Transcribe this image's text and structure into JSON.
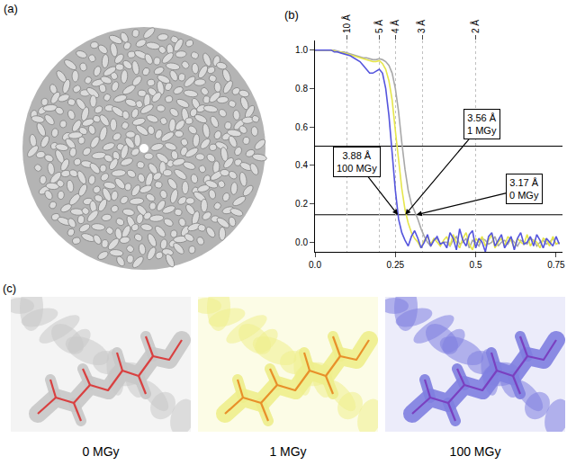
{
  "chart_data": {
    "type": "line",
    "panel_label": "(b)",
    "x": [
      0,
      0.01,
      0.02,
      0.03,
      0.04,
      0.05,
      0.06,
      0.07,
      0.08,
      0.09,
      0.1,
      0.11,
      0.12,
      0.13,
      0.14,
      0.15,
      0.16,
      0.17,
      0.18,
      0.19,
      0.2,
      0.21,
      0.22,
      0.23,
      0.24,
      0.25,
      0.26,
      0.27,
      0.28,
      0.29,
      0.3,
      0.31,
      0.32,
      0.33,
      0.34,
      0.35,
      0.36,
      0.37,
      0.38,
      0.39,
      0.4,
      0.41,
      0.42,
      0.43,
      0.44,
      0.45,
      0.46,
      0.47,
      0.48,
      0.49,
      0.5,
      0.51,
      0.52,
      0.53,
      0.54,
      0.55,
      0.56,
      0.57,
      0.58,
      0.59,
      0.6,
      0.61,
      0.62,
      0.63,
      0.64,
      0.65,
      0.66,
      0.67,
      0.68,
      0.69,
      0.7,
      0.71,
      0.72,
      0.73,
      0.74,
      0.75,
      0.76
    ],
    "series": [
      {
        "name": "0 MGy",
        "color": "#a8a8a8",
        "values": [
          1.0,
          1.0,
          1.0,
          1.0,
          1.0,
          1.0,
          1.0,
          0.995,
          0.99,
          0.99,
          0.985,
          0.98,
          0.975,
          0.97,
          0.965,
          0.96,
          0.96,
          0.955,
          0.95,
          0.95,
          0.955,
          0.95,
          0.94,
          0.92,
          0.88,
          0.8,
          0.68,
          0.52,
          0.38,
          0.27,
          0.2,
          0.16,
          0.12,
          0.07,
          0.03,
          0.0,
          -0.02,
          0.01,
          0.02,
          -0.01,
          0.0,
          0.0,
          -0.02,
          0.01,
          0.03,
          -0.01,
          0.0,
          0.02,
          -0.03,
          0.01,
          0.0,
          -0.02,
          0.02,
          0.01,
          -0.01,
          0.0,
          0.03,
          -0.02,
          0.0,
          0.01,
          -0.01,
          0.02,
          0.0,
          -0.02,
          0.01,
          0.0,
          -0.01,
          0.02,
          0.01,
          -0.02,
          0.0,
          0.01,
          -0.01,
          0.0,
          0.02,
          -0.01,
          0.0
        ]
      },
      {
        "name": "1 MGy",
        "color": "#e6e64a",
        "values": [
          1.0,
          1.0,
          1.0,
          1.0,
          1.0,
          1.0,
          0.995,
          0.99,
          0.99,
          0.985,
          0.98,
          0.975,
          0.97,
          0.965,
          0.96,
          0.955,
          0.95,
          0.945,
          0.94,
          0.94,
          0.945,
          0.93,
          0.9,
          0.84,
          0.74,
          0.58,
          0.42,
          0.28,
          0.17,
          0.1,
          0.05,
          0.02,
          0.0,
          -0.03,
          0.01,
          0.03,
          -0.01,
          0.02,
          0.0,
          -0.02,
          0.01,
          0.03,
          -0.02,
          0.04,
          0.0,
          -0.03,
          0.02,
          0.05,
          -0.01,
          -0.04,
          0.02,
          0.0,
          0.03,
          -0.02,
          0.01,
          0.04,
          -0.03,
          0.0,
          0.02,
          -0.02,
          0.03,
          0.01,
          -0.03,
          0.02,
          0.0,
          -0.01,
          0.04,
          -0.02,
          0.01,
          0.0,
          -0.03,
          0.02,
          0.01,
          -0.02,
          0.03,
          -0.01,
          0.0
        ]
      },
      {
        "name": "100 MGy",
        "color": "#5555dd",
        "values": [
          1.0,
          1.0,
          1.0,
          1.0,
          1.0,
          1.0,
          0.99,
          0.99,
          0.985,
          0.98,
          0.975,
          0.97,
          0.96,
          0.95,
          0.94,
          0.92,
          0.9,
          0.88,
          0.88,
          0.89,
          0.9,
          0.88,
          0.8,
          0.66,
          0.46,
          0.27,
          0.12,
          0.05,
          0.01,
          -0.02,
          0.03,
          0.06,
          0.02,
          -0.03,
          0.0,
          0.04,
          -0.02,
          0.01,
          0.03,
          -0.01,
          0.0,
          -0.03,
          0.05,
          0.02,
          -0.04,
          0.07,
          0.01,
          -0.02,
          0.04,
          0.06,
          -0.03,
          0.02,
          0.0,
          -0.05,
          0.03,
          0.05,
          -0.02,
          0.01,
          0.04,
          -0.03,
          0.0,
          0.03,
          -0.04,
          0.02,
          0.05,
          -0.01,
          0.0,
          0.03,
          -0.02,
          0.04,
          0.01,
          -0.03,
          0.02,
          0.0,
          -0.02,
          0.03,
          -0.01
        ]
      }
    ],
    "xlim": [
      0,
      0.77
    ],
    "xticks": [
      {
        "value": 0,
        "label": "0.0"
      },
      0.25,
      0.5,
      0.75
    ],
    "ylim": [
      -0.05,
      1.05
    ],
    "yticks": [
      {
        "value": 0,
        "label": "0.0"
      },
      0.2,
      0.4,
      0.6,
      0.8,
      {
        "value": 1,
        "label": "1.0"
      }
    ],
    "x2lim": [
      0,
      0.77
    ],
    "x2ticks": [
      {
        "value": 0.1,
        "label": "10 Å"
      },
      {
        "value": 0.2,
        "label": "5 Å"
      },
      {
        "value": 0.25,
        "label": "4 Å"
      },
      {
        "value": 0.3333,
        "label": "3 Å"
      },
      {
        "value": 0.5,
        "label": "2 Å"
      }
    ],
    "reference_lines": [
      0.5,
      0.143
    ],
    "annotations": [
      {
        "text": [
          "3.88 Å",
          "100 MGy"
        ],
        "x": 0.2577,
        "y": 0.143
      },
      {
        "text": [
          "3.56 Å",
          "1 MGy"
        ],
        "x": 0.2809,
        "y": 0.143
      },
      {
        "text": [
          "3.17 Å",
          "0 MGy"
        ],
        "x": 0.3155,
        "y": 0.143
      }
    ],
    "grid": true
  },
  "panels": {
    "a": {
      "label": "(a)"
    },
    "c": {
      "label": "(c)",
      "maps": [
        {
          "label": "0 MGy",
          "color": "#c8c8c8",
          "model_color": "#d94040"
        },
        {
          "label": "1 MGy",
          "color": "#eeee8c",
          "model_color": "#e8902a"
        },
        {
          "label": "100 MGy",
          "color": "#8080e0",
          "model_color": "#7a40c0"
        }
      ]
    }
  }
}
